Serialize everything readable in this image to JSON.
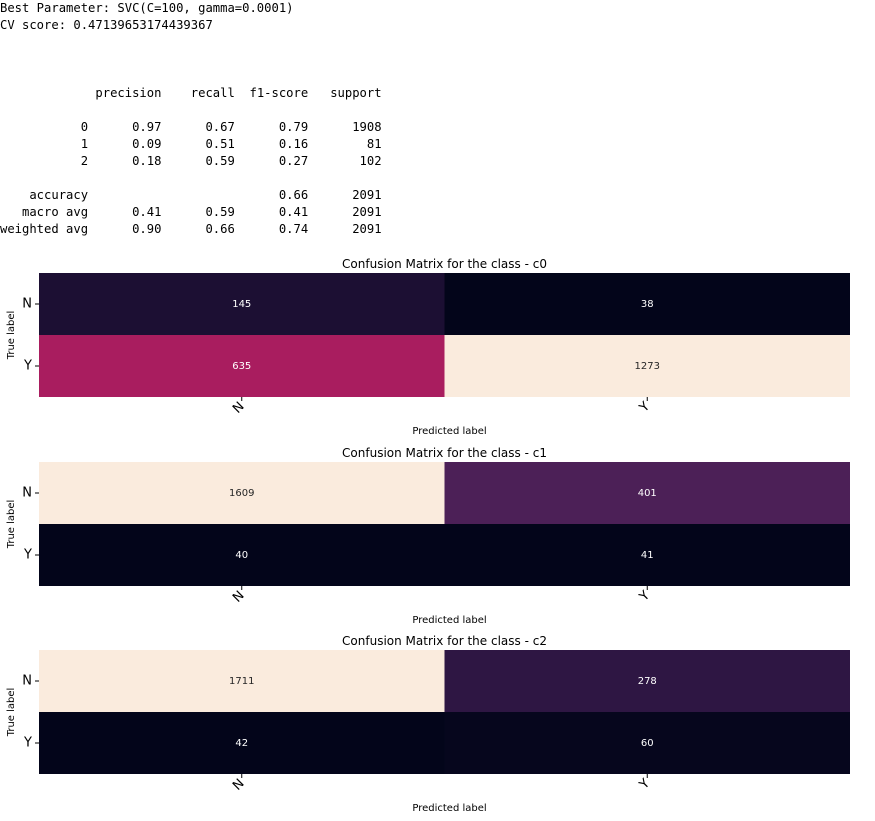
{
  "output": {
    "best_parameter": "Best Parameter: SVC(C=100, gamma=0.0001)",
    "cv_score": "CV score: 0.47139653174439367",
    "report_header": [
      "",
      "precision",
      "recall",
      "f1-score",
      "support"
    ],
    "report_rows": [
      [
        "0",
        "0.97",
        "0.67",
        "0.79",
        "1908"
      ],
      [
        "1",
        "0.09",
        "0.51",
        "0.16",
        "81"
      ],
      [
        "2",
        "0.18",
        "0.59",
        "0.27",
        "102"
      ]
    ],
    "report_summary": [
      [
        "accuracy",
        "",
        "",
        "0.66",
        "2091"
      ],
      [
        "macro avg",
        "0.41",
        "0.59",
        "0.41",
        "2091"
      ],
      [
        "weighted avg",
        "0.90",
        "0.66",
        "0.74",
        "2091"
      ]
    ]
  },
  "chart_data": [
    {
      "type": "heatmap",
      "title": "Confusion Matrix for the class - c0",
      "xlabel": "Predicted label",
      "ylabel": "True label",
      "x_categories": [
        "N",
        "Y"
      ],
      "y_categories": [
        "N",
        "Y"
      ],
      "values": [
        [
          145,
          38
        ],
        [
          635,
          1273
        ]
      ],
      "vrange": [
        38,
        1273
      ],
      "colormap": "rocket",
      "colorbar": false
    },
    {
      "type": "heatmap",
      "title": "Confusion Matrix for the class - c1",
      "xlabel": "Predicted label",
      "ylabel": "True label",
      "x_categories": [
        "N",
        "Y"
      ],
      "y_categories": [
        "N",
        "Y"
      ],
      "values": [
        [
          1609,
          401
        ],
        [
          40,
          41
        ]
      ],
      "vrange": [
        40,
        1609
      ],
      "colormap": "rocket",
      "colorbar": false
    },
    {
      "type": "heatmap",
      "title": "Confusion Matrix for the class - c2",
      "xlabel": "Predicted label",
      "ylabel": "True label",
      "x_categories": [
        "N",
        "Y"
      ],
      "y_categories": [
        "N",
        "Y"
      ],
      "values": [
        [
          1711,
          278
        ],
        [
          42,
          60
        ]
      ],
      "vrange": [
        42,
        1711
      ],
      "colormap": "rocket",
      "colorbar": false
    }
  ]
}
